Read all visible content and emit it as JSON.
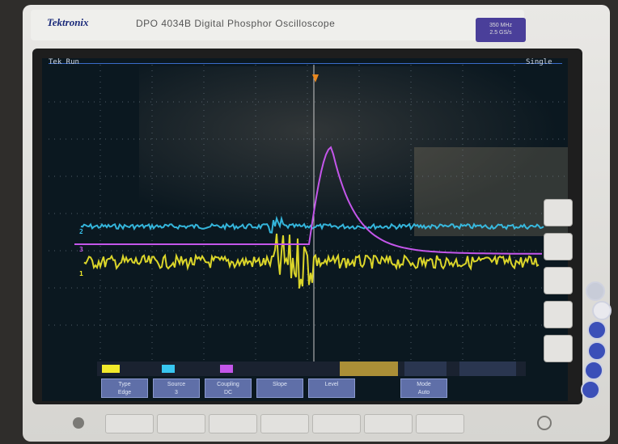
{
  "device": {
    "brand": "Tektronix",
    "model": "DPO 4034B Digital Phosphor Oscilloscope",
    "badge": "350 MHz\n2.5 GS/s"
  },
  "screen": {
    "top_left": "Tek Run",
    "top_right": "Single",
    "markers": [
      "1",
      "2",
      "3"
    ],
    "colors": {
      "ch1": "#f2ea2b",
      "ch2": "#38c6f0",
      "ch3": "#c456ea",
      "grid": "#6d7a86",
      "trigger": "#e8871f"
    }
  },
  "softkeys": [
    {
      "top": "Type",
      "bottom": "Edge"
    },
    {
      "top": "Source",
      "bottom": "3"
    },
    {
      "top": "Coupling",
      "bottom": "DC"
    },
    {
      "top": "Slope",
      "bottom": ""
    },
    {
      "top": "Level",
      "bottom": ""
    },
    {
      "top": "Mode",
      "bottom": "Auto"
    }
  ]
}
